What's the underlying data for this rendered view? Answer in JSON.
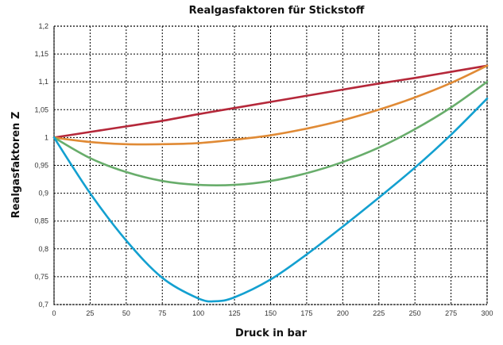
{
  "chart_data": {
    "type": "line",
    "title": "Realgasfaktoren für Stickstoff",
    "xlabel": "Druck in bar",
    "ylabel": "Realgasfaktoren Z",
    "xlim": [
      0,
      300
    ],
    "ylim": [
      0.7,
      1.2
    ],
    "x_ticks": [
      0,
      25,
      50,
      75,
      100,
      125,
      150,
      175,
      200,
      225,
      250,
      275,
      300
    ],
    "x_tick_labels": [
      "0",
      "25",
      "50",
      "75",
      "100",
      "125",
      "150",
      "175",
      "200",
      "225",
      "250",
      "275",
      "300"
    ],
    "y_ticks": [
      0.7,
      0.75,
      0.8,
      0.85,
      0.9,
      0.95,
      1.0,
      1.05,
      1.1,
      1.15,
      1.2
    ],
    "y_tick_labels": [
      "0,7",
      "0,75",
      "0,8",
      "0,85",
      "0,9",
      "0,95",
      "1",
      "1,05",
      "1,1",
      "1,15",
      "1,2"
    ],
    "grid": true,
    "series": [
      {
        "color": "#b5283a",
        "x": [
          0,
          25,
          50,
          75,
          100,
          125,
          150,
          175,
          200,
          225,
          250,
          275,
          300
        ],
        "y": [
          1.0,
          1.01,
          1.02,
          1.03,
          1.042,
          1.053,
          1.064,
          1.075,
          1.086,
          1.097,
          1.107,
          1.118,
          1.129
        ]
      },
      {
        "color": "#e08a35",
        "x": [
          0,
          25,
          50,
          75,
          100,
          125,
          150,
          175,
          200,
          225,
          250,
          275,
          300
        ],
        "y": [
          1.0,
          0.992,
          0.988,
          0.988,
          0.99,
          0.996,
          1.004,
          1.016,
          1.031,
          1.05,
          1.072,
          1.098,
          1.129
        ]
      },
      {
        "color": "#68ad6b",
        "x": [
          0,
          25,
          50,
          75,
          100,
          125,
          150,
          175,
          200,
          225,
          250,
          275,
          300
        ],
        "y": [
          1.0,
          0.963,
          0.938,
          0.922,
          0.915,
          0.915,
          0.922,
          0.936,
          0.956,
          0.982,
          1.015,
          1.054,
          1.1
        ]
      },
      {
        "color": "#13a0d0",
        "x": [
          0,
          25,
          50,
          75,
          100,
          112,
          125,
          150,
          175,
          200,
          225,
          250,
          275,
          300
        ],
        "y": [
          1.0,
          0.9,
          0.815,
          0.748,
          0.711,
          0.706,
          0.713,
          0.745,
          0.79,
          0.84,
          0.892,
          0.946,
          1.005,
          1.07
        ]
      }
    ]
  }
}
